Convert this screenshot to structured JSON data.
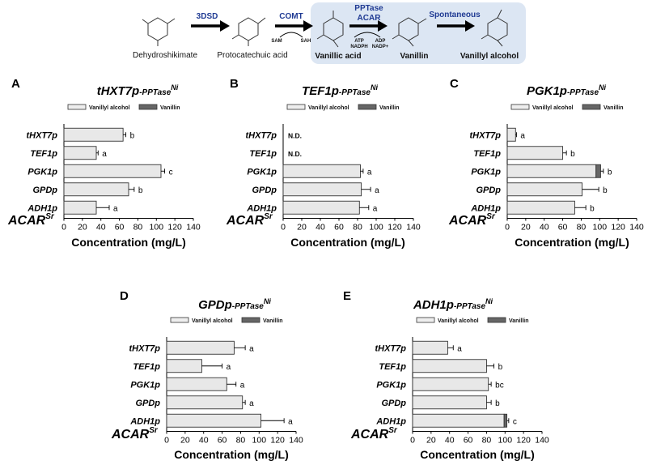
{
  "pathway": {
    "compounds": [
      "Dehydroshikimate",
      "Protocatechuic acid",
      "Vanillic acid",
      "Vanillin",
      "Vanillyl alcohol"
    ],
    "enzymes": {
      "e1": "3DSD",
      "e2": "COMT",
      "e3a": "PPTase",
      "e3b": "ACAR",
      "e4": "Spontaneous"
    },
    "cofactors": {
      "sam": "SAM",
      "sah": "SAH",
      "atp": "ATP",
      "nadph": "NADPH",
      "adp": "ADP",
      "nadp": "NADP+"
    },
    "colors": {
      "box": "#dce6f3",
      "enzyme": "#1f3a93"
    }
  },
  "chart_data": [
    {
      "type": "bar",
      "panel": "A",
      "title_main": "tHXT7p",
      "title_sub": "-PPTase",
      "title_sup": "Ni",
      "row_label": "ACAR",
      "row_label_sup": "Sr",
      "categories": [
        "tHXT7p",
        "TEF1p",
        "PGK1p",
        "GPDp",
        "ADH1p"
      ],
      "series": [
        {
          "name": "Vanillyl alcohol",
          "values": [
            64,
            35,
            105,
            70,
            35
          ]
        },
        {
          "name": "Vanillin",
          "values": [
            0,
            0,
            0,
            0,
            0
          ]
        }
      ],
      "errors": [
        3,
        2,
        4,
        6,
        14
      ],
      "annotations": [
        "b",
        "a",
        "c",
        "b",
        "a"
      ],
      "legend": [
        "Vanillyl alcohol",
        "Vanillin"
      ],
      "xlabel": "Concentration (mg/L)",
      "xlim": [
        0,
        140
      ],
      "xticks": [
        0,
        20,
        40,
        60,
        80,
        100,
        120,
        140
      ]
    },
    {
      "type": "bar",
      "panel": "B",
      "title_main": "TEF1p",
      "title_sub": "-PPTase",
      "title_sup": "Ni",
      "row_label": "ACAR",
      "row_label_sup": "Sr",
      "categories": [
        "tHXT7p",
        "TEF1p",
        "PGK1p",
        "GPDp",
        "ADH1p"
      ],
      "series": [
        {
          "name": "Vanillyl alcohol",
          "values": [
            0,
            0,
            83,
            84,
            82
          ]
        },
        {
          "name": "Vanillin",
          "values": [
            0,
            0,
            0,
            0,
            0
          ]
        }
      ],
      "errors": [
        0,
        0,
        3,
        10,
        10
      ],
      "annotations": [
        "N.D.",
        "N.D.",
        "a",
        "a",
        "a"
      ],
      "legend": [
        "Vanillyl alcohol",
        "Vanillin"
      ],
      "xlabel": "Concentration (mg/L)",
      "xlim": [
        0,
        140
      ],
      "xticks": [
        0,
        20,
        40,
        60,
        80,
        100,
        120,
        140
      ]
    },
    {
      "type": "bar",
      "panel": "C",
      "title_main": "PGK1p",
      "title_sub": "-PPTase",
      "title_sup": "Ni",
      "row_label": "ACAR",
      "row_label_sup": "Sr",
      "categories": [
        "tHXT7p",
        "TEF1p",
        "PGK1p",
        "GPDp",
        "ADH1p"
      ],
      "series": [
        {
          "name": "Vanillyl alcohol",
          "values": [
            9,
            60,
            96,
            81,
            73
          ]
        },
        {
          "name": "Vanillin",
          "values": [
            0,
            0,
            5,
            0,
            0
          ]
        }
      ],
      "errors": [
        1,
        4,
        3,
        18,
        12
      ],
      "annotations": [
        "a",
        "b",
        "b",
        "b",
        "b"
      ],
      "legend": [
        "Vanillyl alcohol",
        "Vanillin"
      ],
      "xlabel": "Concentration (mg/L)",
      "xlim": [
        0,
        140
      ],
      "xticks": [
        0,
        20,
        40,
        60,
        80,
        100,
        120,
        140
      ]
    },
    {
      "type": "bar",
      "panel": "D",
      "title_main": "GPDp",
      "title_sub": "-PPTase",
      "title_sup": "Ni",
      "row_label": "ACAR",
      "row_label_sup": "Sr",
      "categories": [
        "tHXT7p",
        "TEF1p",
        "PGK1p",
        "GPDp",
        "ADH1p"
      ],
      "series": [
        {
          "name": "Vanillyl alcohol",
          "values": [
            73,
            38,
            65,
            82,
            102
          ]
        },
        {
          "name": "Vanillin",
          "values": [
            0,
            0,
            0,
            0,
            0
          ]
        }
      ],
      "errors": [
        12,
        22,
        10,
        3,
        25
      ],
      "annotations": [
        "a",
        "a",
        "a",
        "a",
        "a"
      ],
      "legend": [
        "Vanillyl alcohol",
        "Vanillin"
      ],
      "xlabel": "Concentration (mg/L)",
      "xlim": [
        0,
        140
      ],
      "xticks": [
        0,
        20,
        40,
        60,
        80,
        100,
        120,
        140
      ]
    },
    {
      "type": "bar",
      "panel": "E",
      "title_main": "ADH1p",
      "title_sub": "-PPTase",
      "title_sup": "Ni",
      "row_label": "ACAR",
      "row_label_sup": "Sr",
      "categories": [
        "tHXT7p",
        "TEF1p",
        "PGK1p",
        "GPDp",
        "ADH1p"
      ],
      "series": [
        {
          "name": "Vanillyl alcohol",
          "values": [
            38,
            80,
            82,
            80,
            99
          ]
        },
        {
          "name": "Vanillin",
          "values": [
            0,
            0,
            0,
            0,
            3
          ]
        }
      ],
      "errors": [
        6,
        8,
        3,
        5,
        2
      ],
      "annotations": [
        "a",
        "b",
        "bc",
        "b",
        "c"
      ],
      "legend": [
        "Vanillyl alcohol",
        "Vanillin"
      ],
      "xlabel": "Concentration (mg/L)",
      "xlim": [
        0,
        140
      ],
      "xticks": [
        0,
        20,
        40,
        60,
        80,
        100,
        120,
        140
      ]
    }
  ]
}
